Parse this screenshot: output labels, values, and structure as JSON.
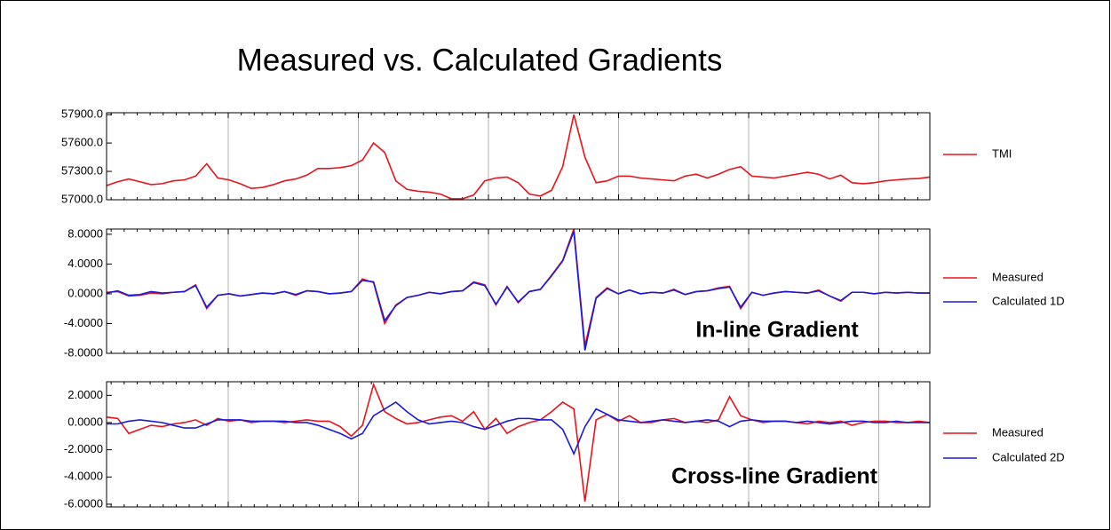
{
  "chart_data": [
    {
      "type": "line",
      "title": "Measured vs. Calculated Gradients",
      "ylim": [
        57000,
        57920
      ],
      "yticks": [
        {
          "value": 57000,
          "label": "57000.0"
        },
        {
          "value": 57300,
          "label": "57300.0"
        },
        {
          "value": 57600,
          "label": "57600.0"
        },
        {
          "value": 57900,
          "label": "57900.0"
        }
      ],
      "series": [
        {
          "name": "TMI",
          "color": "#e8141c",
          "values": [
            57150,
            57190,
            57220,
            57190,
            57160,
            57170,
            57200,
            57210,
            57250,
            57380,
            57230,
            57210,
            57170,
            57120,
            57130,
            57160,
            57200,
            57220,
            57260,
            57330,
            57330,
            57340,
            57360,
            57420,
            57600,
            57500,
            57200,
            57110,
            57090,
            57080,
            57060,
            57010,
            57010,
            57050,
            57200,
            57230,
            57240,
            57180,
            57060,
            57040,
            57100,
            57350,
            57900,
            57450,
            57180,
            57200,
            57250,
            57250,
            57230,
            57220,
            57210,
            57200,
            57250,
            57270,
            57230,
            57270,
            57320,
            57350,
            57250,
            57240,
            57230,
            57250,
            57270,
            57290,
            57270,
            57220,
            57260,
            57180,
            57170,
            57180,
            57200,
            57210,
            57220,
            57225,
            57240
          ]
        }
      ]
    },
    {
      "type": "line",
      "annotation": "In-line Gradient",
      "ylim": [
        -8,
        8.7
      ],
      "yticks": [
        {
          "value": -8,
          "label": "-8.0000"
        },
        {
          "value": -4,
          "label": "-4.0000"
        },
        {
          "value": 0,
          "label": "0.0000"
        },
        {
          "value": 4,
          "label": "4.0000"
        },
        {
          "value": 8,
          "label": "8.0000"
        }
      ],
      "series": [
        {
          "name": "Measured",
          "color": "#e8141c",
          "values": [
            0.2,
            0.3,
            -0.3,
            -0.2,
            0.1,
            0,
            0.2,
            0.3,
            1.2,
            -2.0,
            -0.2,
            0,
            -0.3,
            -0.1,
            0.1,
            0,
            0.3,
            -0.2,
            0.4,
            0.3,
            0,
            0.1,
            0.3,
            2.0,
            1.5,
            -4.0,
            -1.5,
            -0.5,
            -0.2,
            0.2,
            0,
            0.3,
            0.4,
            1.6,
            1.2,
            -1.5,
            1.0,
            -1.2,
            0.3,
            0.6,
            2.5,
            4.5,
            8.7,
            -7.0,
            -0.5,
            0.8,
            0,
            0.5,
            0,
            0.2,
            0.1,
            0.6,
            -0.1,
            0.3,
            0.4,
            0.8,
            1.0,
            -2.0,
            0.2,
            -0.2,
            0.1,
            0.3,
            0.2,
            0.1,
            0.5,
            -0.3,
            -1.0,
            0.2,
            0.2,
            0,
            0.2,
            0.1,
            0.2,
            0.1,
            0.1
          ]
        },
        {
          "name": "Calculated 1D",
          "color": "#1a1adc",
          "values": [
            0.1,
            0.4,
            -0.2,
            -0.1,
            0.3,
            0.1,
            0.2,
            0.3,
            1.1,
            -1.8,
            -0.2,
            0,
            -0.3,
            -0.1,
            0.1,
            0,
            0.3,
            -0.1,
            0.4,
            0.3,
            0,
            0.1,
            0.3,
            1.8,
            1.6,
            -3.6,
            -1.6,
            -0.5,
            -0.2,
            0.2,
            0,
            0.3,
            0.4,
            1.5,
            1.1,
            -1.4,
            0.9,
            -1.1,
            0.3,
            0.6,
            2.4,
            4.4,
            8.4,
            -7.6,
            -0.6,
            0.7,
            0,
            0.5,
            0,
            0.2,
            0.1,
            0.5,
            -0.1,
            0.3,
            0.4,
            0.7,
            0.9,
            -1.8,
            0.2,
            -0.2,
            0.1,
            0.3,
            0.2,
            0.1,
            0.4,
            -0.3,
            -0.9,
            0.2,
            0.2,
            0,
            0.2,
            0.1,
            0.2,
            0.1,
            0.1
          ]
        }
      ]
    },
    {
      "type": "line",
      "annotation": "Cross-line Gradient",
      "ylim": [
        -6.2,
        3
      ],
      "yticks": [
        {
          "value": -6,
          "label": "-6.0000"
        },
        {
          "value": -4,
          "label": "-4.0000"
        },
        {
          "value": -2,
          "label": "-2.0000"
        },
        {
          "value": 0,
          "label": "0.0000"
        },
        {
          "value": 2,
          "label": "2.0000"
        }
      ],
      "series": [
        {
          "name": "Measured",
          "color": "#e8141c",
          "values": [
            0.4,
            0.3,
            -0.8,
            -0.5,
            -0.2,
            -0.3,
            -0.1,
            0,
            0.2,
            -0.2,
            0.3,
            0.1,
            0.2,
            0,
            0.1,
            0.1,
            0,
            0.1,
            0.2,
            0.1,
            0.1,
            -0.3,
            -1.0,
            -0.2,
            2.8,
            0.8,
            0.3,
            -0.1,
            0,
            0.2,
            0.4,
            0.5,
            0.1,
            0.8,
            -0.5,
            0.3,
            -0.8,
            -0.3,
            0,
            0.2,
            0.8,
            1.5,
            1.0,
            -5.8,
            0.2,
            0.6,
            0.1,
            0.5,
            0,
            0,
            0.2,
            0.3,
            0,
            0.1,
            0,
            0.2,
            1.9,
            0.5,
            0.2,
            0,
            0.1,
            0.1,
            0,
            -0.1,
            0.1,
            0,
            0.1,
            -0.2,
            0,
            0.1,
            0.1,
            0,
            0,
            0.1,
            0
          ]
        },
        {
          "name": "Calculated 2D",
          "color": "#1a1adc",
          "values": [
            -0.1,
            -0.1,
            0.1,
            0.2,
            0.1,
            0,
            -0.2,
            -0.4,
            -0.4,
            -0.1,
            0.2,
            0.2,
            0.2,
            0.1,
            0.1,
            0.1,
            0.1,
            0,
            0,
            -0.2,
            -0.5,
            -0.8,
            -1.2,
            -0.8,
            0.5,
            1.0,
            1.5,
            0.8,
            0.2,
            -0.1,
            0,
            0.1,
            0,
            -0.3,
            -0.5,
            -0.2,
            0.1,
            0.3,
            0.3,
            0.2,
            0.2,
            -0.5,
            -2.3,
            -0.3,
            1.0,
            0.6,
            0.2,
            0.1,
            0,
            0.1,
            0.2,
            0.1,
            0,
            0.1,
            0.2,
            0.1,
            -0.3,
            0.1,
            0.2,
            0.1,
            0.1,
            0.1,
            0,
            0.1,
            0,
            -0.1,
            0,
            0.1,
            0.1,
            0,
            0,
            0.1,
            0,
            0,
            0
          ]
        }
      ]
    }
  ]
}
